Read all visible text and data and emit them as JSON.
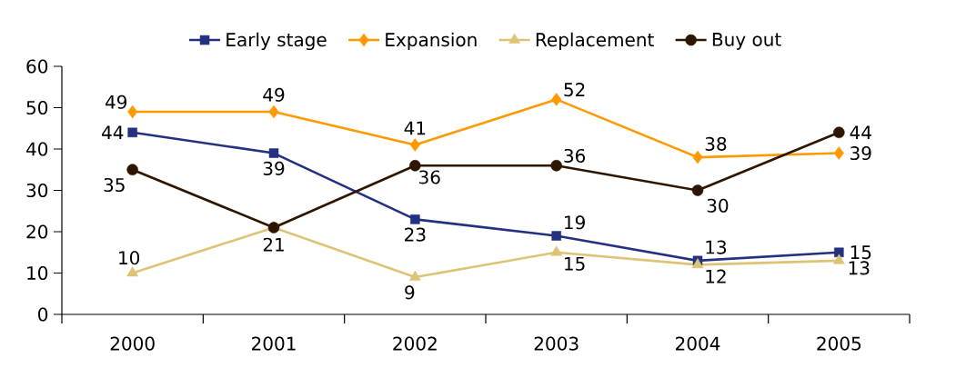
{
  "chart_data": {
    "type": "line",
    "categories": [
      "2000",
      "2001",
      "2002",
      "2003",
      "2004",
      "2005"
    ],
    "series": [
      {
        "name": "Early stage",
        "color": "#233180",
        "marker": "square",
        "values": [
          44,
          39,
          23,
          19,
          13,
          15
        ],
        "value_labels": [
          "44",
          "39",
          "23",
          "19",
          "13",
          "15"
        ]
      },
      {
        "name": "Expansion",
        "color": "#FF9900",
        "marker": "diamond",
        "values": [
          49,
          49,
          41,
          52,
          38,
          39
        ],
        "value_labels": [
          "49",
          "49",
          "41",
          "52",
          "38",
          "39"
        ]
      },
      {
        "name": "Replacement",
        "color": "#DDC375",
        "marker": "triangle",
        "values": [
          10,
          21,
          9,
          15,
          12,
          13
        ],
        "value_labels": [
          "10",
          null,
          "9",
          "15",
          "12",
          "13"
        ]
      },
      {
        "name": "Buy out",
        "color": "#2E1500",
        "marker": "circle",
        "values": [
          35,
          21,
          36,
          36,
          30,
          44
        ],
        "value_labels": [
          "35",
          "21",
          "36",
          "36",
          "30",
          "44"
        ]
      }
    ],
    "ylim": [
      0,
      60
    ],
    "yticks": [
      0,
      10,
      20,
      30,
      40,
      50,
      60
    ],
    "legend": "top"
  }
}
